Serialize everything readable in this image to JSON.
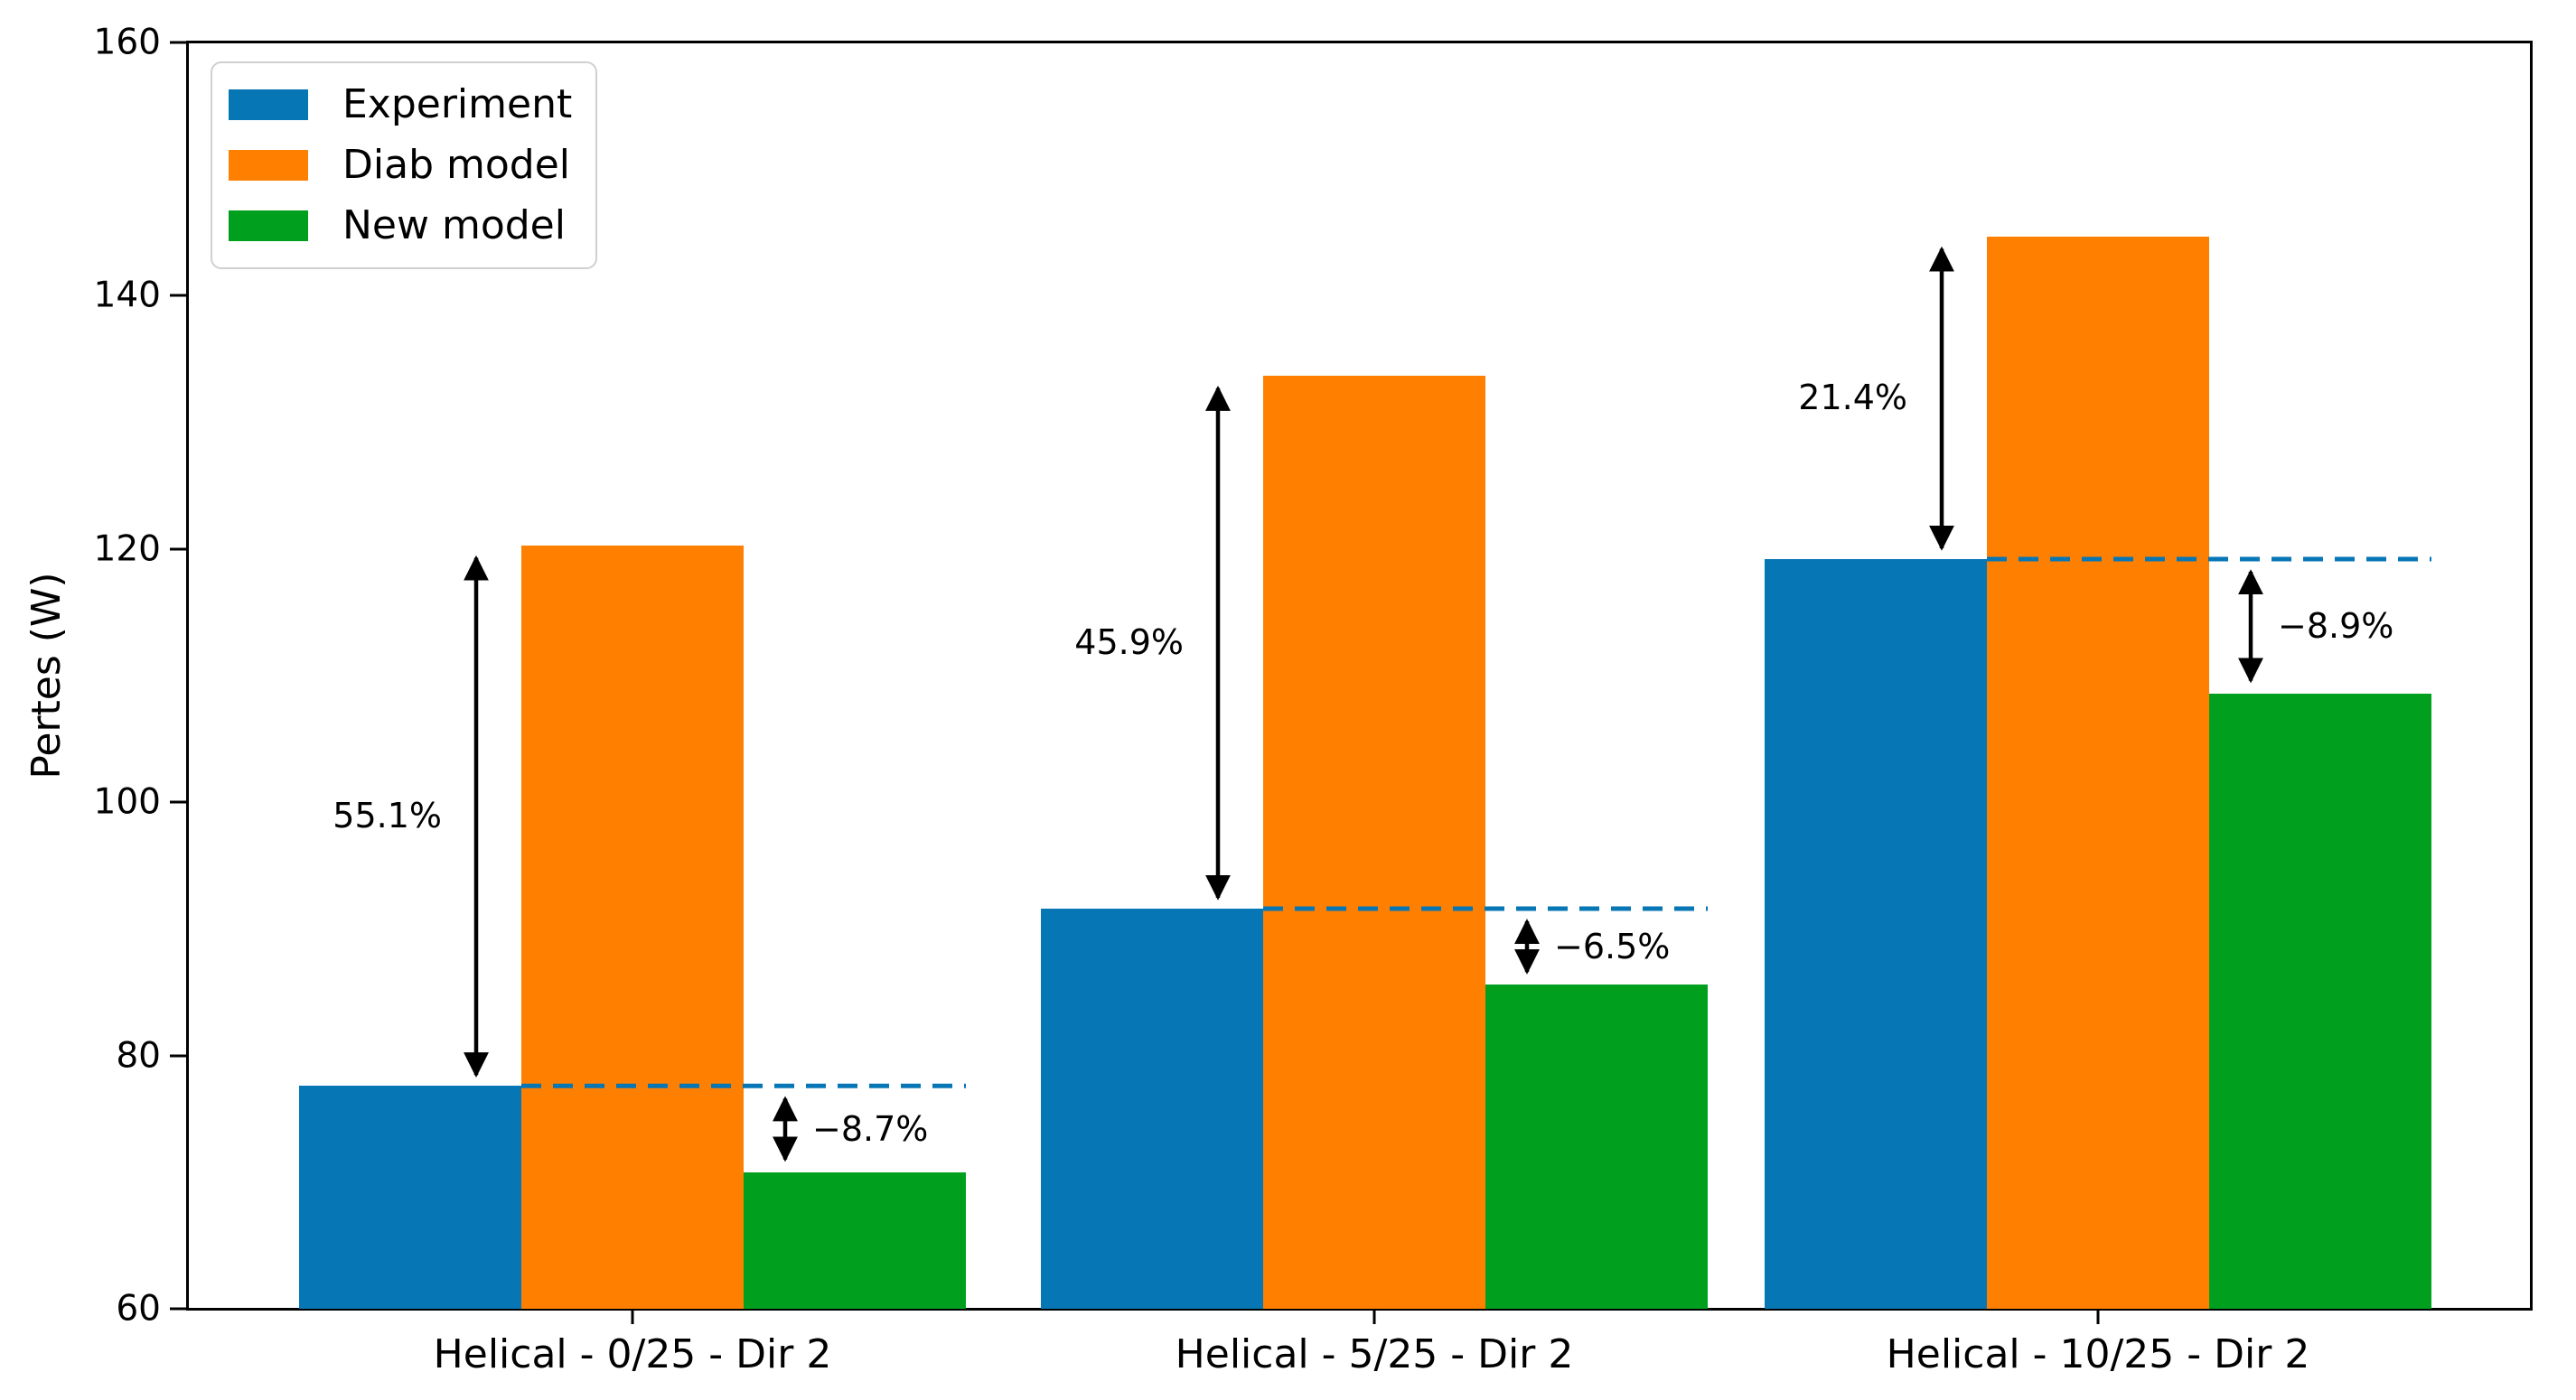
{
  "figure": {
    "background": "#ffffff",
    "axis_color": "#000000"
  },
  "chart_data": {
    "type": "bar",
    "title": "",
    "ylabel": "Pertes (W)",
    "xlabel": "",
    "ylim": [
      60,
      160
    ],
    "yticks": [
      60,
      80,
      100,
      120,
      140,
      160
    ],
    "grid": false,
    "legend_position": "upper left",
    "categories": [
      "Helical - 0/25 - Dir 2",
      "Helical - 5/25 - Dir 2",
      "Helical - 10/25 - Dir 2"
    ],
    "series": [
      {
        "name": "Experiment",
        "color": "#0776b5",
        "values": [
          77.6,
          91.6,
          119.2
        ]
      },
      {
        "name": "Diab model",
        "color": "#ff8000",
        "values": [
          120.3,
          133.7,
          144.7
        ]
      },
      {
        "name": "New model",
        "color": "#00a01e",
        "values": [
          70.8,
          85.6,
          108.6
        ]
      }
    ],
    "annotations": {
      "diab_vs_exp": [
        "55.1%",
        "45.9%",
        "21.4%"
      ],
      "new_vs_exp": [
        "−8.7%",
        "−6.5%",
        "−8.9%"
      ]
    },
    "reference_lines": {
      "style": "dashed",
      "color": "#0776b5",
      "level": "experiment value extended across each group"
    }
  }
}
